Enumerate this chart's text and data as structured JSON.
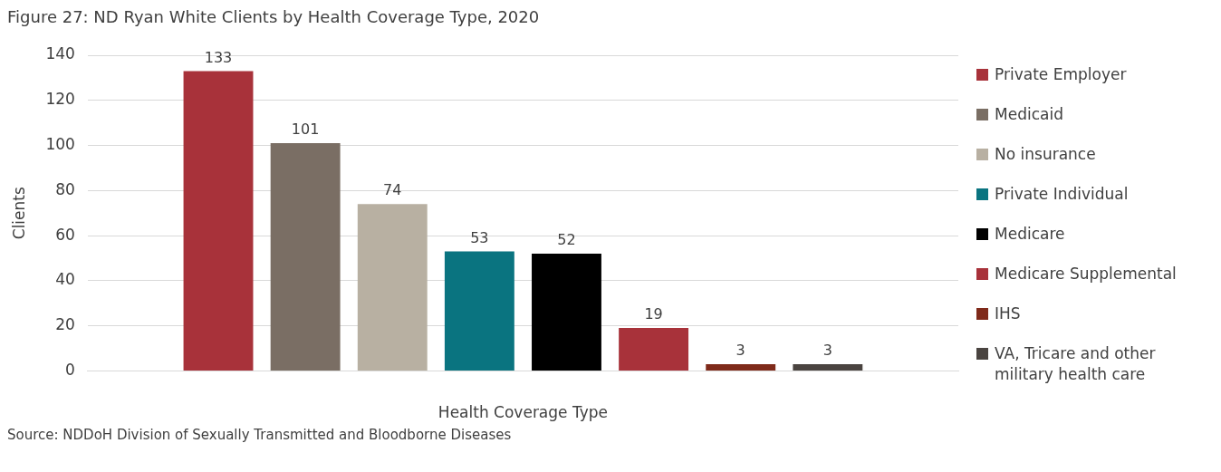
{
  "chart_data": {
    "type": "bar",
    "title": "Figure 27: ND Ryan White Clients by Health Coverage Type, 2020",
    "xlabel": "Health Coverage Type",
    "ylabel": "Clients",
    "categories": [
      null
    ],
    "series": [
      {
        "name": "Private Employer",
        "color": "#a8323a",
        "values": [
          133
        ]
      },
      {
        "name": "Medicaid",
        "color": "#7a6e64",
        "values": [
          101
        ]
      },
      {
        "name": "No insurance",
        "color": "#b8b0a2",
        "values": [
          74
        ]
      },
      {
        "name": "Private Individual",
        "color": "#0a7480",
        "values": [
          53
        ]
      },
      {
        "name": "Medicare",
        "color": "#000000",
        "values": [
          52
        ]
      },
      {
        "name": "Medicare Supplemental",
        "color": "#a8323a",
        "values": [
          19
        ]
      },
      {
        "name": "IHS",
        "color": "#7f2a1a",
        "values": [
          3
        ]
      },
      {
        "name": "VA, Tricare and other military health care",
        "color": "#4a4440",
        "values": [
          3
        ]
      }
    ],
    "ylim": [
      0,
      140
    ],
    "yticks": [
      0,
      20,
      40,
      60,
      80,
      100,
      120,
      140
    ],
    "grid": "y",
    "legend": "right",
    "data_labels": true,
    "annotations": [
      "Source: NDDoH Division of Sexually Transmitted and Bloodborne Diseases"
    ]
  }
}
